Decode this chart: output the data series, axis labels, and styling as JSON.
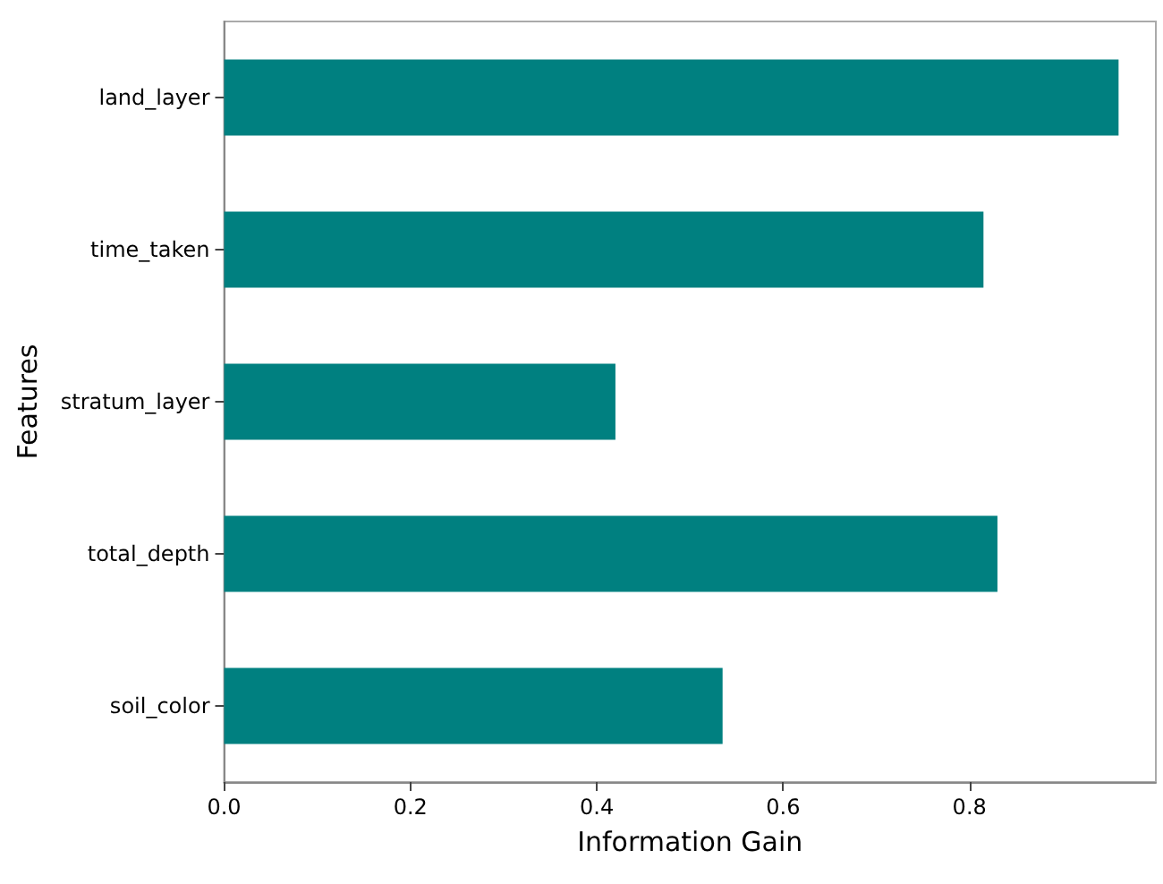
{
  "chart_data": {
    "type": "bar",
    "orientation": "horizontal",
    "xlabel": "Information Gain",
    "ylabel": "Features",
    "categories": [
      "land_layer",
      "time_taken",
      "stratum_layer",
      "total_depth",
      "soil_color"
    ],
    "values": [
      0.96,
      0.815,
      0.42,
      0.83,
      0.535
    ],
    "color": "#008080",
    "xlim": [
      0,
      1.0
    ],
    "xticks": [
      {
        "value": 0,
        "label": "0.0"
      },
      {
        "value": 0.2,
        "label": "0.2"
      },
      {
        "value": 0.4,
        "label": "0.4"
      },
      {
        "value": 0.6,
        "label": "0.6"
      },
      {
        "value": 0.8,
        "label": "0.8"
      }
    ],
    "grid": false
  }
}
